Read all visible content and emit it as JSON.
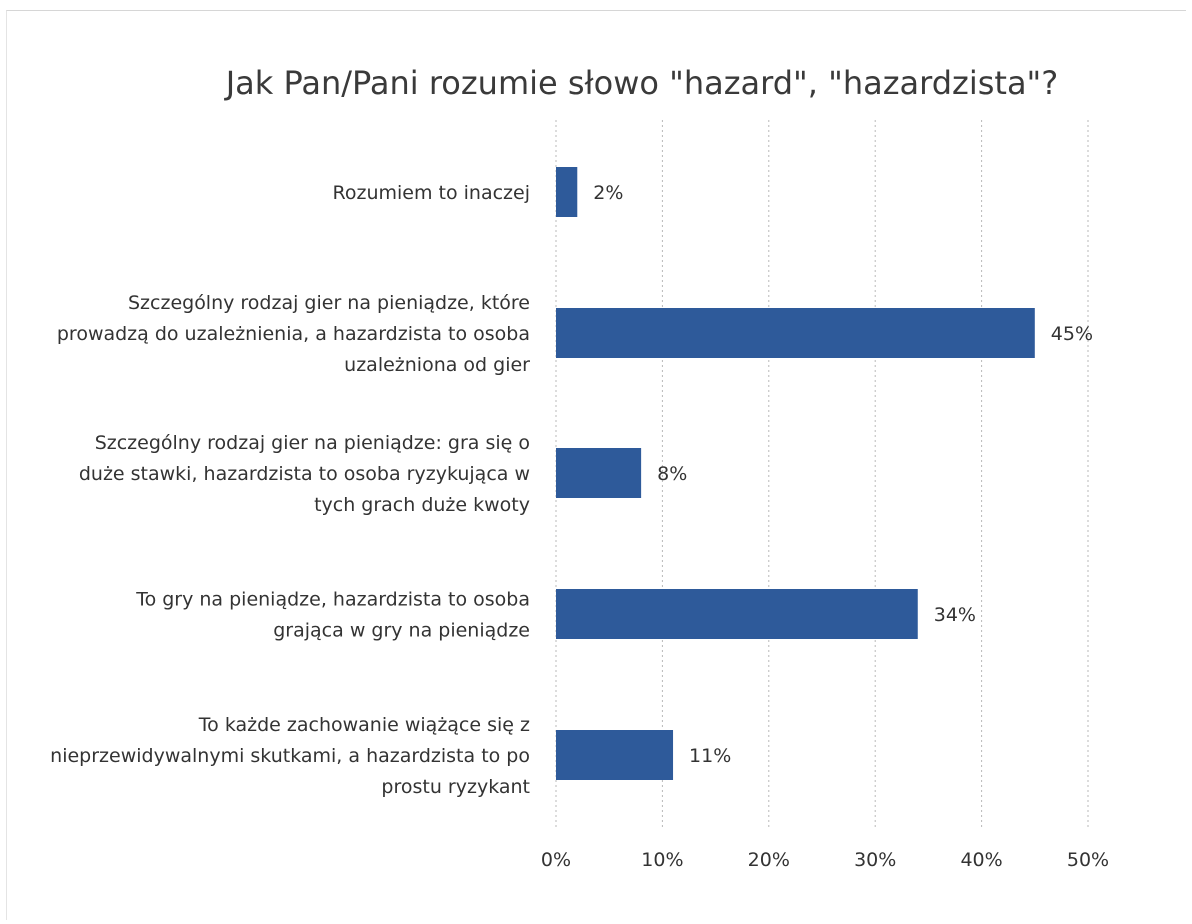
{
  "chart_data": {
    "type": "bar",
    "orientation": "horizontal",
    "title": "Jak Pan/Pani rozumie słowo \"hazard\", \"hazardzista\"?",
    "categories": [
      [
        "Rozumiem to inaczej"
      ],
      [
        "Szczególny rodzaj gier na pieniądze, które",
        "prowadzą do uzależnienia, a hazardzista to osoba",
        "uzależniona od gier"
      ],
      [
        "Szczególny rodzaj gier na pieniądze: gra się o",
        "duże stawki, hazardzista to osoba ryzykująca w",
        "tych grach duże kwoty"
      ],
      [
        "To gry na pieniądze, hazardzista to osoba",
        "grająca w gry na pieniądze"
      ],
      [
        "To każde zachowanie wiążące się z",
        "nieprzewidywalnymi skutkami, a hazardzista to po",
        "prostu ryzykant"
      ]
    ],
    "values": [
      2,
      45,
      8,
      34,
      11
    ],
    "value_labels": [
      "2%",
      "45%",
      "8%",
      "34%",
      "11%"
    ],
    "xlim": [
      0,
      50
    ],
    "xticks": [
      "0%",
      "10%",
      "20%",
      "30%",
      "40%",
      "50%"
    ],
    "grid": true,
    "bar_color": "#2e5a9a"
  }
}
